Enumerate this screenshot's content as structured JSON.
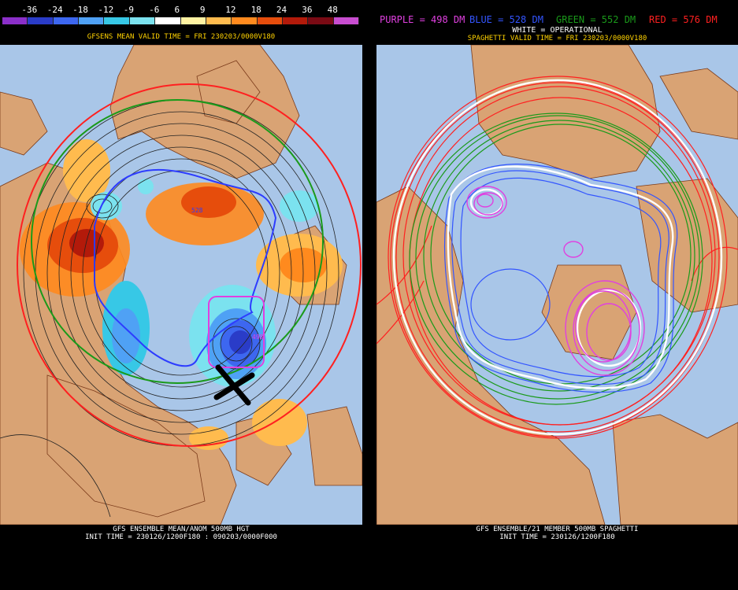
{
  "left_panel": {
    "scale_ticks": [
      "-36",
      "-24",
      "-18",
      "-12",
      "-9",
      "-6",
      "6",
      "9",
      "12",
      "18",
      "24",
      "36",
      "48"
    ],
    "scale_colors": [
      "#8b2fc9",
      "#2a3cc8",
      "#3d67f0",
      "#4fa1f5",
      "#37c8e6",
      "#7be2ef",
      "#ffffff",
      "#fff2a2",
      "#ffbb4e",
      "#ff8a1e",
      "#e64d0c",
      "#b31a0a",
      "#7a0a14",
      "#c84dd0"
    ],
    "title": "GFSENS MEAN VALID TIME = FRI 230203/0000V180",
    "footer_line1": "GFS ENSEMBLE MEAN/ANOM 500MB HGT",
    "footer_line2": "INIT TIME = 230126/1200F180 : 090203/0000F000",
    "contour_labels": [
      "528",
      "498"
    ]
  },
  "right_panel": {
    "legend": {
      "purple": "PURPLE = 498 DM",
      "blue": "BLUE = 528 DM",
      "green": "GREEN = 552 DM",
      "red": "RED = 576 DM"
    },
    "legend_colors": {
      "purple": "#e040e0",
      "blue": "#3355ff",
      "green": "#1a9a1a",
      "red": "#ff2020",
      "white": "#ffffff"
    },
    "white_label": "WHITE = OPERATIONAL",
    "title": "SPAGHETTI VALID TIME = FRI 230203/0000V180",
    "footer_line1": "GFS ENSEMBLE/21 MEMBER 500MB SPAGHETTI",
    "footer_line2": "INIT TIME = 230126/1200F180"
  },
  "colors": {
    "ocean": "#a9c6e8",
    "land": "#d9a374",
    "border": "#7a3a1a"
  }
}
